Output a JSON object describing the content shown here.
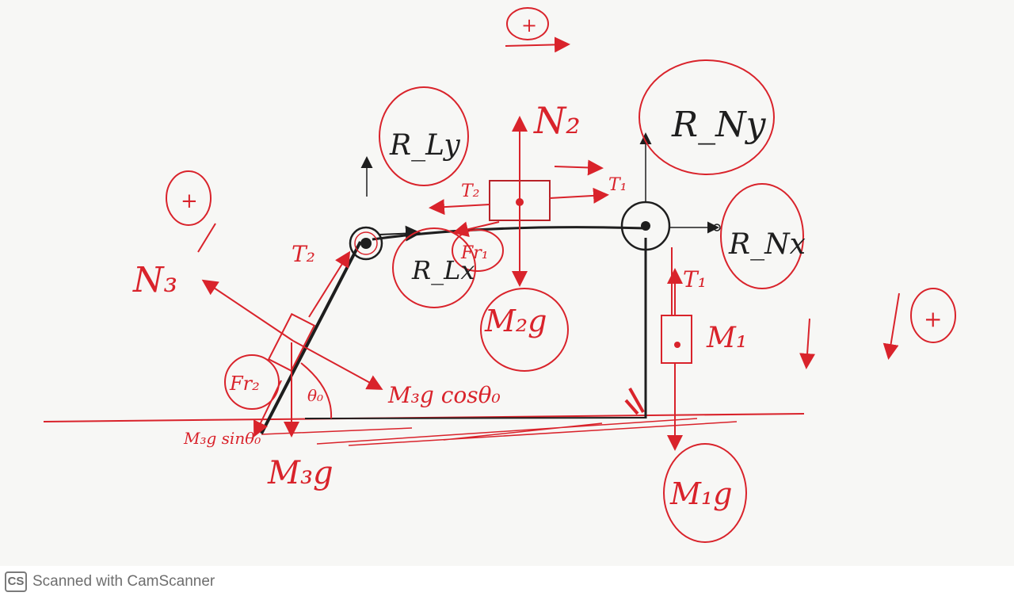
{
  "colors": {
    "ink": "#1e1e1e",
    "red": "#d9232b",
    "paper": "#f7f7f5"
  },
  "labels": {
    "plus_top": "+",
    "plus_left": "+",
    "plus_right": "+",
    "N2": "N₂",
    "N3": "N₃",
    "RLy": "R_Ly",
    "RNy": "R_Ny",
    "RLx": "R_Lx",
    "RNx": "R_Nx",
    "T1_top": "T₁",
    "T2_top": "T₂",
    "T1_right": "T₁",
    "T2_left": "T₂",
    "Fr1": "Fr₁",
    "Fr2": "Fr₂",
    "M2g": "M₂g",
    "M1": "M₁",
    "M1g": "M₁g",
    "M3cos": "M₃g cosθ₀",
    "M3sin": "M₃g sinθ₀",
    "M3g": "M₃g",
    "theta0": "θ₀"
  },
  "footer": {
    "logo": "CS",
    "text": "Scanned with CamScanner"
  }
}
